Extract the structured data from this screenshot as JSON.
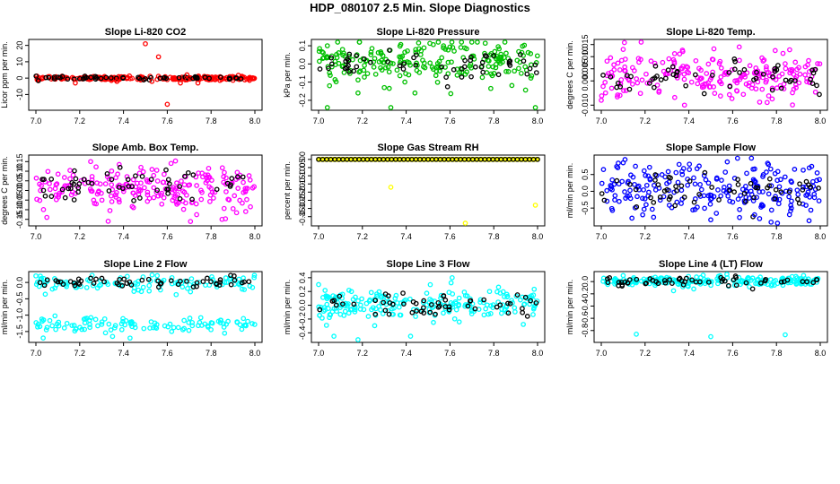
{
  "page_title": "HDP_080107  2.5 Min. Slope Diagnostics",
  "chart_data": [
    {
      "type": "scatter",
      "title": "Slope Li-820 CO2",
      "ylabel": "Licor ppm per min.",
      "color": "#ff0000",
      "xlim": [
        7.0,
        8.0
      ],
      "ylim": [
        -18,
        22
      ],
      "xticks": [
        "7.0",
        "7.2",
        "7.4",
        "7.6",
        "7.8",
        "8.0"
      ],
      "yticks": [
        "-10",
        "0",
        "10",
        "20"
      ],
      "series": [
        {
          "name": "main",
          "spread": 0.6,
          "center": 0
        },
        {
          "name": "black",
          "color": "#000000",
          "spread": 0.5,
          "center": 0
        }
      ],
      "outliers": [
        {
          "x": 7.5,
          "y": 21
        },
        {
          "x": 7.56,
          "y": 13
        },
        {
          "x": 7.6,
          "y": -16
        },
        {
          "x": 7.66,
          "y": -3
        },
        {
          "x": 7.69,
          "y": 2
        },
        {
          "x": 7.74,
          "y": -3
        },
        {
          "x": 7.18,
          "y": -3
        },
        {
          "x": 7.37,
          "y": -2
        },
        {
          "x": 7.53,
          "y": -2
        },
        {
          "x": 7.69,
          "y": -1
        }
      ]
    },
    {
      "type": "scatter",
      "title": "Slope Li-820 Pressure",
      "ylabel": "kPa per min.",
      "color": "#00c000",
      "xlim": [
        7.0,
        8.0
      ],
      "ylim": [
        -0.24,
        0.12
      ],
      "xticks": [
        "7.0",
        "7.2",
        "7.4",
        "7.6",
        "7.8",
        "8.0"
      ],
      "yticks": [
        "-0.2",
        "-0.1",
        "0.0",
        "0.1"
      ],
      "series": [
        {
          "name": "main",
          "spread": 0.06,
          "center": 0.01
        },
        {
          "name": "black",
          "color": "#000000",
          "spread": 0.045,
          "center": -0.01
        }
      ],
      "outliers": [
        {
          "x": 7.04,
          "y": -0.24
        },
        {
          "x": 7.33,
          "y": -0.24
        },
        {
          "x": 7.99,
          "y": -0.24
        },
        {
          "x": 7.05,
          "y": -0.12
        },
        {
          "x": 7.44,
          "y": -0.16
        },
        {
          "x": 7.18,
          "y": -0.16
        },
        {
          "x": 7.04,
          "y": 0.1
        },
        {
          "x": 7.3,
          "y": -0.13
        }
      ]
    },
    {
      "type": "scatter",
      "title": "Slope Li-820 Temp.",
      "ylabel": "degrees C per min.",
      "color": "#ff00ff",
      "xlim": [
        7.0,
        8.0
      ],
      "ylim": [
        -0.011,
        0.016
      ],
      "xticks": [
        "7.0",
        "7.2",
        "7.4",
        "7.6",
        "7.8",
        "8.0"
      ],
      "yticks": [
        "-0.010",
        "0.000",
        "0.005",
        "0.010",
        "0.015"
      ],
      "series": [
        {
          "name": "main",
          "spread": 0.0045,
          "center": 0.002
        },
        {
          "name": "black",
          "color": "#000000",
          "spread": 0.0035,
          "center": 0.001
        }
      ],
      "outliers": [
        {
          "x": 7.38,
          "y": -0.01
        },
        {
          "x": 7.63,
          "y": 0.014
        },
        {
          "x": 7.0,
          "y": -0.008
        },
        {
          "x": 7.1,
          "y": 0.013
        }
      ]
    },
    {
      "type": "scatter",
      "title": "Slope Amb. Box Temp.",
      "ylabel": "degrees C per min.",
      "color": "#ff00ff",
      "xlim": [
        7.0,
        8.0
      ],
      "ylim": [
        -0.17,
        0.17
      ],
      "xticks": [
        "7.0",
        "7.2",
        "7.4",
        "7.6",
        "7.8",
        "8.0"
      ],
      "yticks": [
        "-0.15",
        "-0.10",
        "-0.05",
        "0.00",
        "0.05",
        "0.10",
        "0.15"
      ],
      "series": [
        {
          "name": "main",
          "spread": 0.06,
          "center": 0.01
        },
        {
          "name": "black",
          "color": "#000000",
          "spread": 0.05,
          "center": 0.02
        }
      ],
      "outliers": [
        {
          "x": 7.33,
          "y": -0.16
        },
        {
          "x": 7.05,
          "y": -0.14
        },
        {
          "x": 7.25,
          "y": 0.15
        },
        {
          "x": 7.85,
          "y": -0.15
        }
      ]
    },
    {
      "type": "scatter",
      "title": "Slope Gas Stream RH",
      "ylabel": "percent per min.",
      "color": "#ffff00",
      "xlim": [
        7.0,
        8.0
      ],
      "ylim": [
        -0.39,
        0.01
      ],
      "xticks": [
        "7.0",
        "7.2",
        "7.4",
        "7.6",
        "7.8",
        "8.0"
      ],
      "yticks": [
        "-0.35",
        "-0.30",
        "-0.25",
        "-0.20",
        "-0.15",
        "-0.10",
        "-0.05",
        "0.00"
      ],
      "series": [
        {
          "name": "main",
          "spread": 0.0,
          "center": 0.0,
          "regular": true
        },
        {
          "name": "black",
          "color": "#000000",
          "spread": 0.0,
          "center": 0.0,
          "regular": true
        }
      ],
      "outliers": [
        {
          "x": 7.33,
          "y": -0.17
        },
        {
          "x": 7.67,
          "y": -0.39
        },
        {
          "x": 7.99,
          "y": -0.28
        }
      ]
    },
    {
      "type": "scatter",
      "title": "Slope Sample Flow",
      "ylabel": "ml/min per min.",
      "color": "#0000ff",
      "xlim": [
        7.0,
        8.0
      ],
      "ylim": [
        -0.95,
        1.0
      ],
      "xticks": [
        "7.0",
        "7.2",
        "7.4",
        "7.6",
        "7.8",
        "8.0"
      ],
      "yticks": [
        "-0.5",
        "0.0",
        "0.5"
      ],
      "series": [
        {
          "name": "main",
          "spread": 0.28,
          "center": 0.05,
          "bands": [
            0.35,
            -0.25
          ]
        },
        {
          "name": "black",
          "color": "#000000",
          "spread": 0.3,
          "center": -0.05
        }
      ],
      "outliers": [
        {
          "x": 7.5,
          "y": -0.85
        },
        {
          "x": 7.14,
          "y": -0.8
        },
        {
          "x": 7.7,
          "y": -0.7
        },
        {
          "x": 7.1,
          "y": 0.85
        }
      ]
    },
    {
      "type": "scatter",
      "title": "Slope Line 2 Flow",
      "ylabel": "ml/min per min.",
      "color": "#00ffff",
      "xlim": [
        7.0,
        8.0
      ],
      "ylim": [
        -1.75,
        0.25
      ],
      "xticks": [
        "7.0",
        "7.2",
        "7.4",
        "7.6",
        "7.8",
        "8.0"
      ],
      "yticks": [
        "-1.5",
        "-1.0",
        "-0.5",
        "0.0"
      ],
      "series": [
        {
          "name": "main",
          "spread": 0.12,
          "center": -0.0,
          "bands": [
            -0.02,
            -1.3
          ]
        },
        {
          "name": "black",
          "color": "#000000",
          "spread": 0.08,
          "center": 0.03
        }
      ],
      "outliers": [
        {
          "x": 7.0,
          "y": 0.2
        },
        {
          "x": 7.43,
          "y": -1.7
        },
        {
          "x": 7.35,
          "y": -1.65
        },
        {
          "x": 7.62,
          "y": -1.5
        }
      ]
    },
    {
      "type": "scatter",
      "title": "Slope Line 3 Flow",
      "ylabel": "ml/min per min.",
      "color": "#00ffff",
      "xlim": [
        7.0,
        8.0
      ],
      "ylim": [
        -0.5,
        0.45
      ],
      "xticks": [
        "7.0",
        "7.2",
        "7.4",
        "7.6",
        "7.8",
        "8.0"
      ],
      "yticks": [
        "-0.4",
        "-0.2",
        "0.0",
        "0.2",
        "0.4"
      ],
      "series": [
        {
          "name": "main",
          "spread": 0.12,
          "center": 0.0
        },
        {
          "name": "black",
          "color": "#000000",
          "spread": 0.1,
          "center": 0.0
        }
      ],
      "outliers": [
        {
          "x": 7.07,
          "y": -0.45
        },
        {
          "x": 7.18,
          "y": -0.5
        },
        {
          "x": 7.42,
          "y": -0.45
        },
        {
          "x": 7.61,
          "y": 0.4
        },
        {
          "x": 7.0,
          "y": 0.3
        }
      ]
    },
    {
      "type": "scatter",
      "title": "Slope Line 4 (LT) Flow",
      "ylabel": "ml/min per min.",
      "color": "#00ffff",
      "xlim": [
        7.0,
        8.0
      ],
      "ylim": [
        -0.95,
        0.12
      ],
      "xticks": [
        "7.0",
        "7.2",
        "7.4",
        "7.6",
        "7.8",
        "8.0"
      ],
      "yticks": [
        "-0.8",
        "-0.6",
        "-0.4",
        "-0.2",
        "0.0"
      ],
      "series": [
        {
          "name": "main",
          "spread": 0.04,
          "center": 0.0
        },
        {
          "name": "black",
          "color": "#000000",
          "spread": 0.04,
          "center": 0.0
        }
      ],
      "outliers": [
        {
          "x": 7.16,
          "y": -0.86
        },
        {
          "x": 7.5,
          "y": -0.9
        },
        {
          "x": 7.84,
          "y": -0.87
        },
        {
          "x": 7.33,
          "y": -0.15
        },
        {
          "x": 7.1,
          "y": 0.1
        }
      ]
    }
  ]
}
